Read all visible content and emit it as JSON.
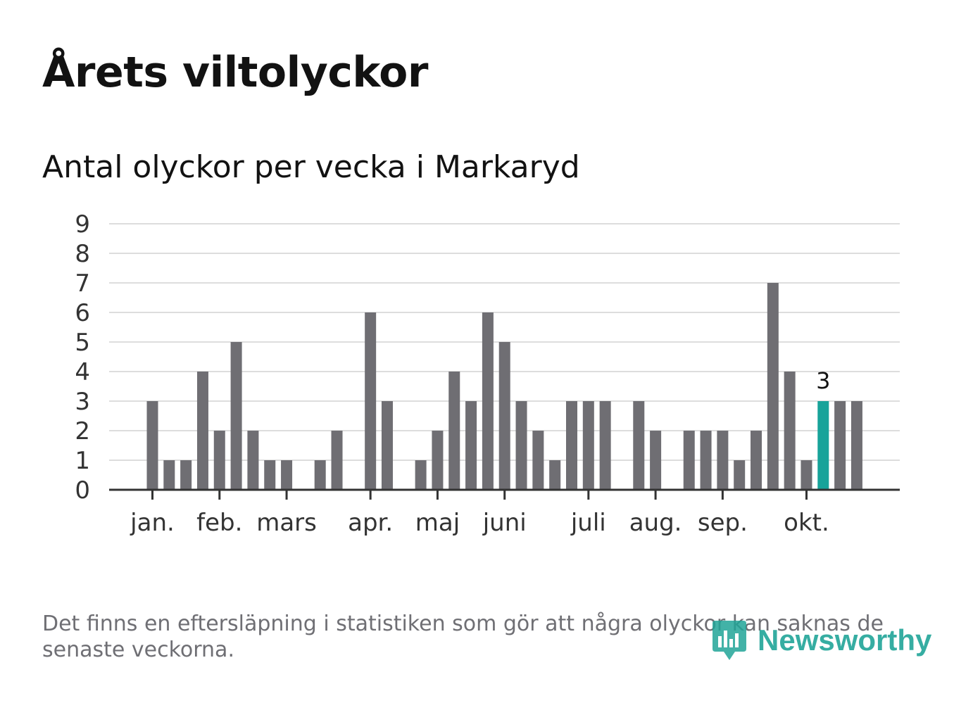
{
  "title": "Årets viltolyckor",
  "subtitle": "Antal olyckor per vecka i Markaryd",
  "footnote": "Det finns en eftersläpning i statistiken som gör att några olyckor kan saknas de senaste veckorna.",
  "brand": {
    "name": "Newsworthy",
    "color": "#21a598"
  },
  "colors": {
    "bar": "#6f6e73",
    "highlight": "#17a39a",
    "grid": "#dddddd",
    "axis": "#333333",
    "label": "#333333"
  },
  "chart_data": {
    "type": "bar",
    "title": "Antal olyckor per vecka i Markaryd",
    "xlabel": "",
    "ylabel": "",
    "ylim": [
      0,
      9
    ],
    "yticks": [
      0,
      1,
      2,
      3,
      4,
      5,
      6,
      7,
      8,
      9
    ],
    "grid": true,
    "weeks": [
      1,
      2,
      3,
      4,
      5,
      6,
      7,
      8,
      9,
      10,
      11,
      12,
      13,
      14,
      15,
      16,
      17,
      18,
      19,
      20,
      21,
      22,
      23,
      24,
      25,
      26,
      27,
      28,
      29,
      30,
      31,
      32,
      33,
      34,
      35,
      36,
      37,
      38,
      39,
      40,
      41,
      42,
      43,
      44,
      45,
      46,
      47
    ],
    "values": [
      0,
      0,
      3,
      1,
      1,
      4,
      2,
      5,
      2,
      1,
      1,
      0,
      1,
      2,
      0,
      6,
      3,
      0,
      1,
      2,
      4,
      3,
      6,
      5,
      3,
      2,
      1,
      3,
      3,
      3,
      0,
      3,
      2,
      0,
      2,
      2,
      2,
      1,
      2,
      7,
      4,
      1,
      3,
      3,
      3,
      0,
      0
    ],
    "highlight_week": 43,
    "highlight_label": "3",
    "month_labels": [
      {
        "label": "jan.",
        "week": 3
      },
      {
        "label": "feb.",
        "week": 7
      },
      {
        "label": "mars",
        "week": 11
      },
      {
        "label": "apr.",
        "week": 16
      },
      {
        "label": "maj",
        "week": 20
      },
      {
        "label": "juni",
        "week": 24
      },
      {
        "label": "juli",
        "week": 29
      },
      {
        "label": "aug.",
        "week": 33
      },
      {
        "label": "sep.",
        "week": 37
      },
      {
        "label": "okt.",
        "week": 42
      }
    ]
  }
}
